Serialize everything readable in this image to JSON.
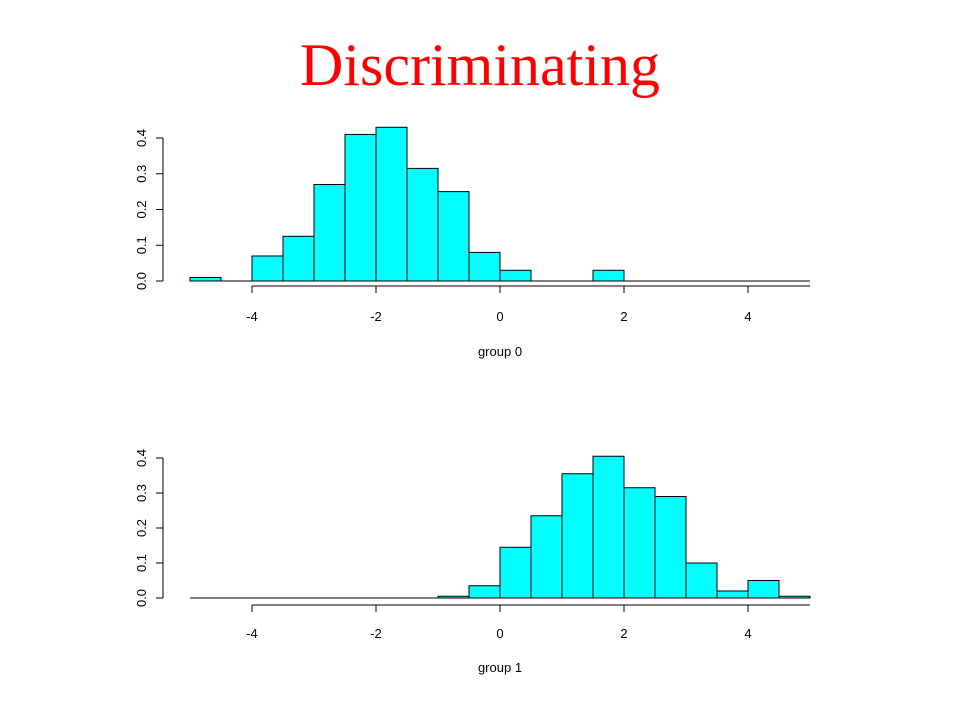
{
  "title": "Discriminating",
  "colors": {
    "title": "#ff0000",
    "bar_fill": "#00ffff",
    "bar_stroke": "#000000"
  },
  "chart_data": [
    {
      "type": "bar",
      "xlabel": "group 0",
      "ylabel": "",
      "xlim": [
        -5,
        5
      ],
      "ylim": [
        0,
        0.4
      ],
      "x_ticks": [
        -4,
        -2,
        0,
        2,
        4
      ],
      "y_ticks": [
        0.0,
        0.1,
        0.2,
        0.3,
        0.4
      ],
      "y_tick_labels": [
        "0.0",
        "0.1",
        "0.2",
        "0.3",
        "0.4"
      ],
      "bin_edges": [
        -5.0,
        -4.5,
        -4.0,
        -3.5,
        -3.0,
        -2.5,
        -2.0,
        -1.5,
        -1.0,
        -0.5,
        0.0,
        0.5,
        1.0,
        1.5,
        2.0,
        2.5,
        3.0,
        3.5,
        4.0,
        4.5,
        5.0
      ],
      "values": [
        0.01,
        0,
        0.07,
        0.125,
        0.27,
        0.41,
        0.43,
        0.315,
        0.25,
        0.08,
        0.03,
        0,
        0,
        0.03,
        0,
        0,
        0,
        0,
        0,
        0
      ]
    },
    {
      "type": "bar",
      "xlabel": "group 1",
      "ylabel": "",
      "xlim": [
        -5,
        5
      ],
      "ylim": [
        0,
        0.4
      ],
      "x_ticks": [
        -4,
        -2,
        0,
        2,
        4
      ],
      "y_ticks": [
        0.0,
        0.1,
        0.2,
        0.3,
        0.4
      ],
      "y_tick_labels": [
        "0.0",
        "0.1",
        "0.2",
        "0.3",
        "0.4"
      ],
      "bin_edges": [
        -5.0,
        -4.5,
        -4.0,
        -3.5,
        -3.0,
        -2.5,
        -2.0,
        -1.5,
        -1.0,
        -0.5,
        0.0,
        0.5,
        1.0,
        1.5,
        2.0,
        2.5,
        3.0,
        3.5,
        4.0,
        4.5,
        5.0
      ],
      "values": [
        0,
        0,
        0,
        0,
        0,
        0,
        0,
        0,
        0.005,
        0.035,
        0.145,
        0.235,
        0.355,
        0.405,
        0.315,
        0.29,
        0.1,
        0.02,
        0.05,
        0.005
      ]
    }
  ]
}
